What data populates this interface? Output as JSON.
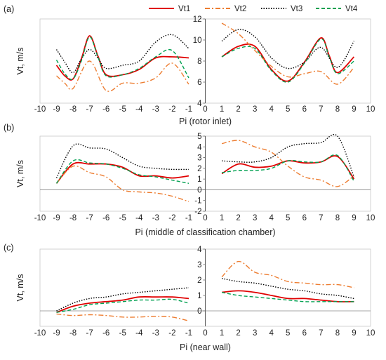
{
  "legend": {
    "entries": [
      {
        "name": "Vt1",
        "color": "#e00000",
        "dash": "solid"
      },
      {
        "name": "Vt2",
        "color": "#ed7d31",
        "dash": "dashdot"
      },
      {
        "name": "Vt3",
        "color": "#000000",
        "dash": "dotted"
      },
      {
        "name": "Vt4",
        "color": "#00a050",
        "dash": "dashed"
      }
    ],
    "placement": "top"
  },
  "chart_data": [
    {
      "type": "line",
      "panel_label": "(a)",
      "xlabel": "Pi (rotor inlet)",
      "ylabel": "Vt, m/s",
      "xlim": [
        -10,
        10
      ],
      "ylim": [
        4,
        12
      ],
      "yticks": [
        4,
        6,
        8,
        10,
        12
      ],
      "xticks": [
        -10,
        -9,
        -8,
        -7,
        -6,
        -5,
        -4,
        -3,
        -2,
        -1,
        0,
        1,
        2,
        3,
        4,
        5,
        6,
        7,
        8,
        9,
        10
      ],
      "grid": false,
      "series": [
        {
          "name": "Vt1",
          "left": [
            [
              -9,
              7.6
            ],
            [
              -8.5,
              6.6
            ],
            [
              -8,
              6.3
            ],
            [
              -7.5,
              8.2
            ],
            [
              -7,
              10.4
            ],
            [
              -6.5,
              8.5
            ],
            [
              -6,
              6.7
            ],
            [
              -5,
              6.7
            ],
            [
              -4,
              7.2
            ],
            [
              -3,
              8.3
            ],
            [
              -2,
              8.4
            ],
            [
              -1,
              8.3
            ]
          ],
          "right": [
            [
              1,
              8.4
            ],
            [
              2,
              9.4
            ],
            [
              3,
              9.4
            ],
            [
              4,
              7.2
            ],
            [
              5,
              6.1
            ],
            [
              6,
              7.9
            ],
            [
              7,
              10.2
            ],
            [
              7.5,
              8.5
            ],
            [
              8,
              6.9
            ],
            [
              9,
              8.4
            ]
          ]
        },
        {
          "name": "Vt2",
          "left": [
            [
              -9,
              6.6
            ],
            [
              -8.5,
              5.9
            ],
            [
              -8,
              5.4
            ],
            [
              -7,
              8.0
            ],
            [
              -6,
              5.2
            ],
            [
              -5,
              5.9
            ],
            [
              -4,
              5.9
            ],
            [
              -3,
              6.4
            ],
            [
              -2,
              7.8
            ],
            [
              -1,
              5.8
            ]
          ],
          "right": [
            [
              1,
              11.6
            ],
            [
              2,
              10.6
            ],
            [
              3,
              9.0
            ],
            [
              4,
              7.5
            ],
            [
              5,
              6.5
            ],
            [
              6,
              6.8
            ],
            [
              7,
              7.0
            ],
            [
              8,
              5.8
            ],
            [
              9,
              7.4
            ]
          ]
        },
        {
          "name": "Vt3",
          "left": [
            [
              -9,
              9.1
            ],
            [
              -8.5,
              7.9
            ],
            [
              -8,
              6.9
            ],
            [
              -7.5,
              8.2
            ],
            [
              -7,
              9.1
            ],
            [
              -6.5,
              8.3
            ],
            [
              -6,
              7.3
            ],
            [
              -5,
              7.6
            ],
            [
              -4,
              8.0
            ],
            [
              -3,
              9.8
            ],
            [
              -2,
              10.5
            ],
            [
              -1,
              9.2
            ]
          ],
          "right": [
            [
              1,
              9.9
            ],
            [
              2,
              11.0
            ],
            [
              3,
              10.3
            ],
            [
              4,
              8.3
            ],
            [
              5,
              7.3
            ],
            [
              6,
              7.9
            ],
            [
              7,
              9.3
            ],
            [
              8,
              7.4
            ],
            [
              9,
              9.9
            ]
          ]
        },
        {
          "name": "Vt4",
          "left": [
            [
              -9,
              8.1
            ],
            [
              -8.5,
              6.8
            ],
            [
              -8,
              6.3
            ],
            [
              -7.5,
              8.0
            ],
            [
              -7,
              10.3
            ],
            [
              -6.5,
              8.4
            ],
            [
              -6,
              6.6
            ],
            [
              -5,
              6.7
            ],
            [
              -4,
              7.3
            ],
            [
              -3,
              8.4
            ],
            [
              -2,
              9.0
            ],
            [
              -1,
              6.4
            ]
          ],
          "right": [
            [
              1,
              8.4
            ],
            [
              2,
              9.2
            ],
            [
              3,
              9.2
            ],
            [
              4,
              7.1
            ],
            [
              5,
              6.0
            ],
            [
              6,
              7.8
            ],
            [
              7,
              10.1
            ],
            [
              7.5,
              8.4
            ],
            [
              8,
              6.8
            ],
            [
              9,
              8.0
            ]
          ]
        }
      ]
    },
    {
      "type": "line",
      "panel_label": "(b)",
      "xlabel": "Pi (middle of classification chamber)",
      "ylabel": "Vt, m/s",
      "xlim": [
        -10,
        10
      ],
      "ylim": [
        -2,
        5
      ],
      "yticks": [
        -2,
        -1,
        0,
        1,
        2,
        3,
        4,
        5
      ],
      "xticks": [
        -10,
        -9,
        -8,
        -7,
        -6,
        -5,
        -4,
        -3,
        -2,
        -1,
        0,
        1,
        2,
        3,
        4,
        5,
        6,
        7,
        8,
        9,
        10
      ],
      "grid": false,
      "series": [
        {
          "name": "Vt1",
          "left": [
            [
              -9,
              0.6
            ],
            [
              -8,
              2.4
            ],
            [
              -7,
              2.4
            ],
            [
              -6,
              2.4
            ],
            [
              -5,
              2.1
            ],
            [
              -4,
              1.3
            ],
            [
              -3,
              1.3
            ],
            [
              -2,
              1.1
            ],
            [
              -1,
              1.3
            ]
          ],
          "right": [
            [
              1,
              1.5
            ],
            [
              2,
              2.4
            ],
            [
              3,
              2.1
            ],
            [
              4,
              2.2
            ],
            [
              5,
              2.7
            ],
            [
              6,
              2.5
            ],
            [
              7,
              2.6
            ],
            [
              8,
              3.1
            ],
            [
              9,
              1.0
            ]
          ]
        },
        {
          "name": "Vt2",
          "left": [
            [
              -9,
              0.6
            ],
            [
              -8,
              2.2
            ],
            [
              -7,
              1.6
            ],
            [
              -6,
              1.2
            ],
            [
              -5,
              0.0
            ],
            [
              -4,
              -0.2
            ],
            [
              -3,
              -0.3
            ],
            [
              -2,
              -0.6
            ],
            [
              -1,
              -1.1
            ]
          ],
          "right": [
            [
              1,
              4.3
            ],
            [
              2,
              4.6
            ],
            [
              3,
              4.0
            ],
            [
              4,
              3.5
            ],
            [
              5,
              2.2
            ],
            [
              6,
              1.2
            ],
            [
              7,
              0.9
            ],
            [
              8,
              0.3
            ],
            [
              9,
              1.3
            ]
          ]
        },
        {
          "name": "Vt3",
          "left": [
            [
              -9,
              1.1
            ],
            [
              -8,
              4.1
            ],
            [
              -7,
              3.9
            ],
            [
              -6,
              3.8
            ],
            [
              -5,
              3.0
            ],
            [
              -4,
              2.2
            ],
            [
              -3,
              2.0
            ],
            [
              -2,
              1.9
            ],
            [
              -1,
              1.9
            ]
          ],
          "right": [
            [
              1,
              2.7
            ],
            [
              2,
              2.6
            ],
            [
              3,
              2.6
            ],
            [
              4,
              3.0
            ],
            [
              5,
              4.0
            ],
            [
              6,
              4.3
            ],
            [
              7,
              4.4
            ],
            [
              8,
              5.0
            ],
            [
              9,
              1.2
            ]
          ]
        },
        {
          "name": "Vt4",
          "left": [
            [
              -9,
              0.6
            ],
            [
              -8,
              2.7
            ],
            [
              -7,
              2.5
            ],
            [
              -6,
              2.4
            ],
            [
              -5,
              2.0
            ],
            [
              -4,
              1.4
            ],
            [
              -3,
              1.2
            ],
            [
              -2,
              0.9
            ],
            [
              -1,
              0.6
            ]
          ],
          "right": [
            [
              1,
              1.6
            ],
            [
              2,
              1.8
            ],
            [
              3,
              1.8
            ],
            [
              4,
              2.0
            ],
            [
              5,
              2.7
            ],
            [
              6,
              2.6
            ],
            [
              7,
              2.6
            ],
            [
              8,
              3.2
            ],
            [
              9,
              0.8
            ]
          ]
        }
      ]
    },
    {
      "type": "line",
      "panel_label": "(c)",
      "xlabel": "Pi (near wall)",
      "ylabel": "Vt, m/s",
      "xlim": [
        -10,
        10
      ],
      "ylim": [
        -1,
        4
      ],
      "yticks": [
        0,
        1,
        2,
        3,
        4
      ],
      "xticks": [
        -10,
        -9,
        -8,
        -7,
        -6,
        -5,
        -4,
        -3,
        -2,
        -1,
        0,
        1,
        2,
        3,
        4,
        5,
        6,
        7,
        8,
        9,
        10
      ],
      "grid": false,
      "series": [
        {
          "name": "Vt1",
          "left": [
            [
              -9,
              -0.1
            ],
            [
              -8,
              0.3
            ],
            [
              -7,
              0.5
            ],
            [
              -6,
              0.6
            ],
            [
              -5,
              0.7
            ],
            [
              -4,
              0.9
            ],
            [
              -3,
              0.9
            ],
            [
              -2,
              0.9
            ],
            [
              -1,
              0.8
            ]
          ],
          "right": [
            [
              1,
              1.2
            ],
            [
              2,
              1.3
            ],
            [
              3,
              1.2
            ],
            [
              4,
              1.0
            ],
            [
              5,
              0.8
            ],
            [
              6,
              0.8
            ],
            [
              7,
              0.7
            ],
            [
              8,
              0.6
            ],
            [
              9,
              0.6
            ]
          ]
        },
        {
          "name": "Vt2",
          "left": [
            [
              -9,
              -0.2
            ],
            [
              -8,
              -0.3
            ],
            [
              -7,
              -0.25
            ],
            [
              -6,
              -0.3
            ],
            [
              -5,
              -0.4
            ],
            [
              -4,
              -0.4
            ],
            [
              -3,
              -0.35
            ],
            [
              -2,
              -0.4
            ],
            [
              -1,
              -0.65
            ]
          ],
          "right": [
            [
              1,
              2.2
            ],
            [
              2,
              3.2
            ],
            [
              3,
              2.5
            ],
            [
              4,
              2.3
            ],
            [
              5,
              1.9
            ],
            [
              6,
              1.8
            ],
            [
              7,
              1.7
            ],
            [
              8,
              1.7
            ],
            [
              9,
              1.5
            ]
          ]
        },
        {
          "name": "Vt3",
          "left": [
            [
              -9,
              0.0
            ],
            [
              -8,
              0.5
            ],
            [
              -7,
              0.8
            ],
            [
              -6,
              0.9
            ],
            [
              -5,
              1.1
            ],
            [
              -4,
              1.2
            ],
            [
              -3,
              1.3
            ],
            [
              -2,
              1.4
            ],
            [
              -1,
              1.5
            ]
          ],
          "right": [
            [
              1,
              2.1
            ],
            [
              2,
              1.9
            ],
            [
              3,
              1.8
            ],
            [
              4,
              1.6
            ],
            [
              5,
              1.4
            ],
            [
              6,
              1.3
            ],
            [
              7,
              1.1
            ],
            [
              8,
              1.0
            ],
            [
              9,
              0.8
            ]
          ]
        },
        {
          "name": "Vt4",
          "left": [
            [
              -9,
              -0.1
            ],
            [
              -8,
              0.1
            ],
            [
              -7,
              0.4
            ],
            [
              -6,
              0.5
            ],
            [
              -5,
              0.6
            ],
            [
              -4,
              0.7
            ],
            [
              -3,
              0.7
            ],
            [
              -2,
              0.75
            ],
            [
              -1,
              0.5
            ]
          ],
          "right": [
            [
              1,
              1.2
            ],
            [
              2,
              1.0
            ],
            [
              3,
              0.9
            ],
            [
              4,
              0.8
            ],
            [
              5,
              0.7
            ],
            [
              6,
              0.6
            ],
            [
              7,
              0.6
            ],
            [
              8,
              0.6
            ],
            [
              9,
              0.6
            ]
          ]
        }
      ]
    }
  ]
}
